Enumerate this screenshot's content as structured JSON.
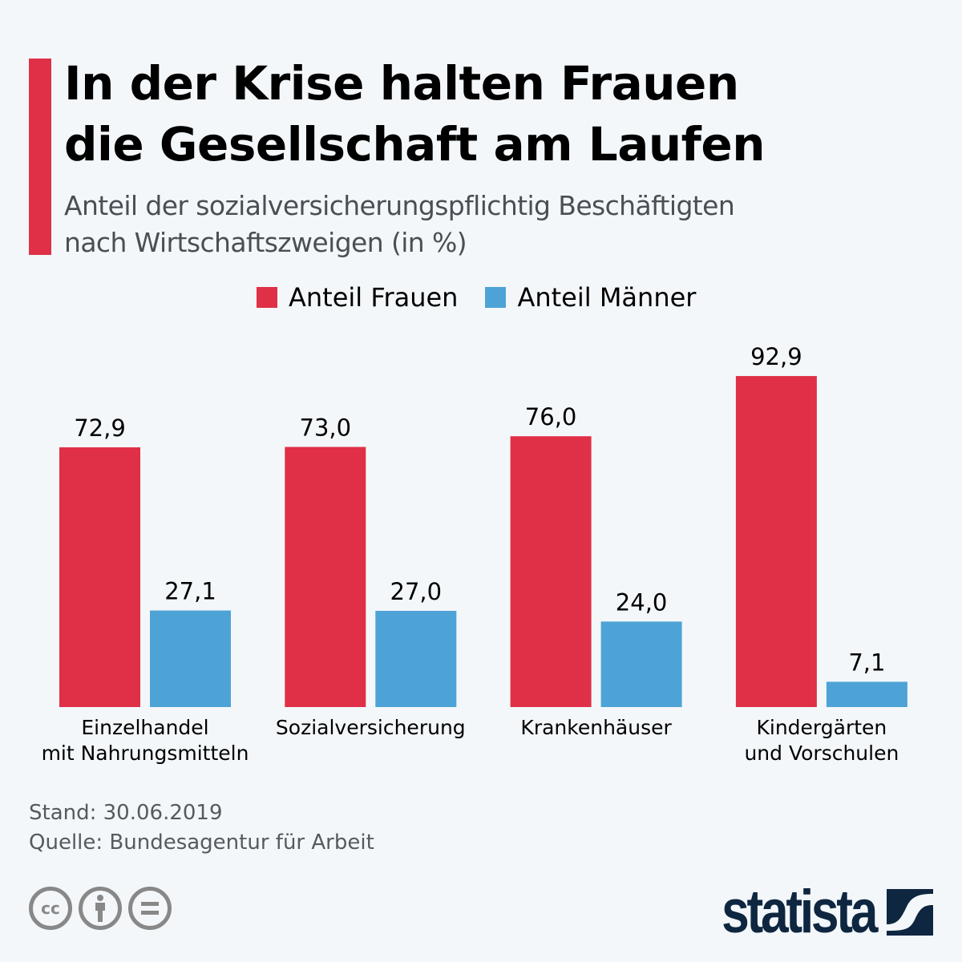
{
  "header": {
    "title_line1": "In der Krise halten Frauen",
    "title_line2": "die Gesellschaft am Laufen",
    "subtitle_line1": "Anteil der sozialversicherungspflichtig Beschäftigten",
    "subtitle_line2": "nach Wirtschaftszweigen (in %)"
  },
  "colors": {
    "frauen": "#e03047",
    "maenner": "#4ea3d6",
    "accent": "#e03047",
    "brand": "#0e2640"
  },
  "chart_data": {
    "type": "bar",
    "title": "In der Krise halten Frauen die Gesellschaft am Laufen",
    "subtitle": "Anteil der sozialversicherungspflichtig Beschäftigten nach Wirtschaftszweigen (in %)",
    "categories": [
      [
        "Einzelhandel",
        "mit Nahrungsmitteln"
      ],
      [
        "Sozialversicherung"
      ],
      [
        "Krankenhäuser"
      ],
      [
        "Kindergärten",
        "und Vorschulen"
      ]
    ],
    "series": [
      {
        "name": "Anteil Frauen",
        "values": [
          72.9,
          73.0,
          76.0,
          92.9
        ],
        "labels": [
          "72,9",
          "73,0",
          "76,0",
          "92,9"
        ]
      },
      {
        "name": "Anteil Männer",
        "values": [
          27.1,
          27.0,
          24.0,
          7.1
        ],
        "labels": [
          "27,1",
          "27,0",
          "24,0",
          "7,1"
        ]
      }
    ],
    "xlabel": "",
    "ylabel": "",
    "ylim": [
      0,
      100
    ],
    "grid": false,
    "legend": "top-center"
  },
  "footer": {
    "stand": "Stand: 30.06.2019",
    "quelle": "Quelle: Bundesagentur für Arbeit",
    "license_icons": [
      "cc-icon",
      "attribution-icon",
      "no-derivatives-icon"
    ],
    "brand": "statista"
  }
}
